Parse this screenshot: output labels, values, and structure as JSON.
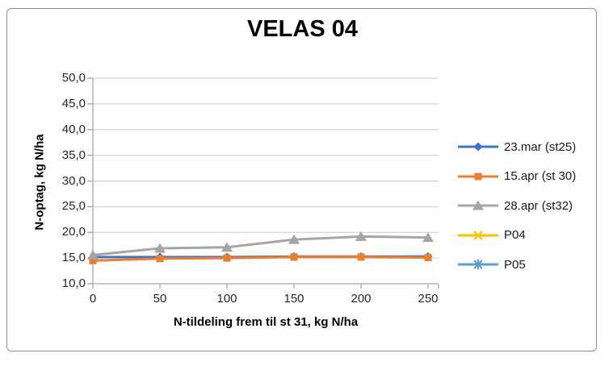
{
  "window": {
    "background": "#ffffff",
    "border_color": "#8e8e8e"
  },
  "chart_data": {
    "type": "line",
    "title": "VELAS 04",
    "xlabel": "N-tildeling frem til st 31, kg N/ha",
    "ylabel": "N-optag, kg N/ha",
    "x": [
      0,
      50,
      100,
      150,
      200,
      250
    ],
    "x_tick_labels": [
      "0",
      "50",
      "100",
      "150",
      "200",
      "250"
    ],
    "y_tick_values": [
      10,
      15,
      20,
      25,
      30,
      35,
      40,
      45,
      50
    ],
    "y_tick_labels": [
      "10,0",
      "15,0",
      "20,0",
      "25,0",
      "30,0",
      "35,0",
      "40,0",
      "45,0",
      "50,0"
    ],
    "xlim": [
      0,
      250
    ],
    "ylim": [
      10,
      50
    ],
    "grid": "horizontal-major-gridlines",
    "gridline_color": "#c9c9c9",
    "axis_color": "#a6a6a6",
    "legend_position": "right",
    "series": [
      {
        "name": "23.mar (st25)",
        "color": "#4472C4",
        "marker": "diamond",
        "values": [
          15.2,
          15.2,
          15.2,
          15.3,
          15.3,
          15.3
        ]
      },
      {
        "name": "15.apr (st 30)",
        "color": "#ED7D31",
        "marker": "square",
        "values": [
          14.5,
          14.9,
          15.0,
          15.2,
          15.2,
          15.1
        ]
      },
      {
        "name": "28.apr (st32)",
        "color": "#A5A5A5",
        "marker": "triangle",
        "values": [
          15.6,
          16.9,
          17.1,
          18.6,
          19.2,
          19.0
        ]
      },
      {
        "name": "P04",
        "color": "#FFC000",
        "marker": "x",
        "values": []
      },
      {
        "name": "P05",
        "color": "#5B9BD5",
        "marker": "asterisk",
        "values": []
      }
    ]
  }
}
